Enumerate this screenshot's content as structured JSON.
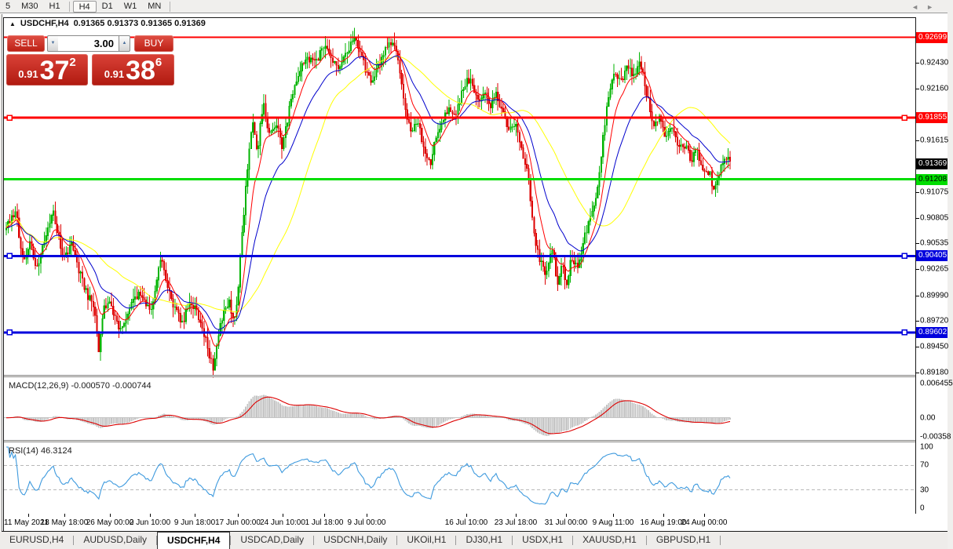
{
  "toolbar": {
    "timeframes": [
      {
        "label": "5",
        "active": false
      },
      {
        "label": "M30",
        "active": false
      },
      {
        "label": "H1",
        "active": false
      },
      {
        "sep": true
      },
      {
        "label": "H4",
        "active": true
      },
      {
        "label": "D1",
        "active": false
      },
      {
        "label": "W1",
        "active": false
      },
      {
        "label": "MN",
        "active": false
      },
      {
        "sep": true
      }
    ]
  },
  "chart_header": {
    "collapse_icon": "up-triangle",
    "symbol": "USDCHF,H4",
    "ohlc": "0.91365 0.91373 0.91365 0.91369"
  },
  "trade_panel": {
    "sell_label": "SELL",
    "buy_label": "BUY",
    "volume": "3.00",
    "sell_quote": {
      "small": "0.91",
      "big": "37",
      "sup": "2"
    },
    "buy_quote": {
      "small": "0.91",
      "big": "38",
      "sup": "6"
    }
  },
  "price_axis": {
    "plain_ticks": [
      {
        "value": 0.9243,
        "label": "0.92430"
      },
      {
        "value": 0.9216,
        "label": "0.92160"
      },
      {
        "value": 0.91615,
        "label": "0.91615"
      },
      {
        "value": 0.91075,
        "label": "0.91075"
      },
      {
        "value": 0.90805,
        "label": "0.90805"
      },
      {
        "value": 0.90535,
        "label": "0.90535"
      },
      {
        "value": 0.90265,
        "label": "0.90265"
      },
      {
        "value": 0.8999,
        "label": "0.89990"
      },
      {
        "value": 0.8972,
        "label": "0.89720"
      },
      {
        "value": 0.8945,
        "label": "0.89450"
      },
      {
        "value": 0.8918,
        "label": "0.89180"
      }
    ]
  },
  "macd_panel": {
    "label": "MACD(12,26,9)",
    "value_main": "-0.000570",
    "value_signal": "-0.000744",
    "axis": [
      {
        "value": 0.006455,
        "label": "0.006455"
      },
      {
        "value": 0,
        "label": "0.00"
      },
      {
        "value": -0.00358,
        "label": "-0.00358"
      }
    ],
    "histogram_color": "#c4c4c4",
    "signal_color": "#dd0000",
    "scale_top": 0.00749,
    "scale_bottom": -0.00417
  },
  "rsi_panel": {
    "label": "RSI(14)",
    "value": "46.3124",
    "axis": [
      {
        "value": 100,
        "label": "100"
      },
      {
        "value": 70,
        "label": "70"
      },
      {
        "value": 30,
        "label": "30"
      },
      {
        "value": 0,
        "label": "0"
      }
    ],
    "levels_dashed": [
      70,
      30
    ],
    "line_color": "#3e9ade",
    "scale_top": 106.4,
    "scale_bottom": -7.7
  },
  "time_axis": {
    "labels": [
      {
        "x": 36,
        "label": "11 May 2021",
        "align": "first"
      },
      {
        "x": 82,
        "label": "18 May 18:00"
      },
      {
        "x": 140,
        "label": "26 May 00:00"
      },
      {
        "x": 191,
        "label": "2 Jun 10:00"
      },
      {
        "x": 248,
        "label": "9 Jun 18:00"
      },
      {
        "x": 303,
        "label": "17 Jun 00:00"
      },
      {
        "x": 360,
        "label": "24 Jun 10:00"
      },
      {
        "x": 413,
        "label": "1 Jul 18:00"
      },
      {
        "x": 467,
        "label": "9 Jul 00:00"
      },
      {
        "x": 594,
        "label": "16 Jul 10:00"
      },
      {
        "x": 657,
        "label": "23 Jul 18:00"
      },
      {
        "x": 721,
        "label": "31 Jul 00:00"
      },
      {
        "x": 781,
        "label": "9 Aug 11:00"
      },
      {
        "x": 845,
        "label": "16 Aug 19:00"
      },
      {
        "x": 897,
        "label": "24 Aug 00:00"
      }
    ]
  },
  "tabs": {
    "items": [
      "EURUSD,H4",
      "AUDUSD,Daily",
      "USDCHF,H4",
      "USDCAD,Daily",
      "USDCNH,Daily",
      "UKOil,H1",
      "DJ30,H1",
      "USDX,H1",
      "XAUUSD,H1",
      "GBPUSD,H1"
    ],
    "active_index": 2,
    "scroll_left": "◄",
    "scroll_right": "►"
  },
  "chart_data": {
    "type": "candlestick",
    "symbol": "USDCHF",
    "timeframe": "H4",
    "title": "USDCHF,H4 0.91365 0.91373 0.91365 0.91369",
    "bull_color": "#00b300",
    "bear_color": "#dd0000",
    "y_range": {
      "top": 0.92901,
      "bottom": 0.89156
    },
    "x_start": 8,
    "x_end": 930,
    "bars": 400,
    "seed": 77,
    "noise": 0.00085,
    "wick": 0.0011,
    "current_price": {
      "value": 0.91369,
      "label": "0.91369",
      "badge_color": "#000000",
      "text_color": "#ffffff"
    },
    "price_levels": [
      {
        "value": 0.92699,
        "label": "0.92699",
        "color": "#ff0000",
        "width": 2,
        "badge_color": "#ff0000",
        "text_color": "#ffffff",
        "handles": false,
        "name": "resistance-line-0-92699"
      },
      {
        "value": 0.91855,
        "label": "0.91855",
        "color": "#ff0000",
        "width": 3,
        "badge_color": "#ff0000",
        "text_color": "#ffffff",
        "handles": true,
        "name": "resistance-line-0-91855"
      },
      {
        "value": 0.91208,
        "label": "0.91208",
        "color": "#00dd00",
        "width": 3,
        "badge_color": "#00dd00",
        "text_color": "#000000",
        "handles": false,
        "name": "support-line-0-91208"
      },
      {
        "value": 0.90405,
        "label": "0.90405",
        "color": "#0000dd",
        "width": 3,
        "badge_color": "#0000dd",
        "text_color": "#ffffff",
        "handles": true,
        "name": "support-line-0-90405"
      },
      {
        "value": 0.89602,
        "label": "0.89602",
        "color": "#0000dd",
        "width": 3,
        "badge_color": "#0000dd",
        "text_color": "#ffffff",
        "handles": true,
        "name": "support-line-0-89602"
      }
    ],
    "moving_averages": [
      {
        "type": "ema",
        "period": 10,
        "color": "#ff0000",
        "name": "ma-fast-red"
      },
      {
        "type": "ema",
        "period": 25,
        "color": "#0000cc",
        "name": "ma-medium-blue"
      },
      {
        "type": "sma",
        "period": 50,
        "color": "#ffff00",
        "name": "ma-slow-yellow"
      }
    ],
    "keyframes": [
      [
        8,
        0.9072
      ],
      [
        20,
        0.9088
      ],
      [
        30,
        0.903
      ],
      [
        38,
        0.9055
      ],
      [
        46,
        0.9024
      ],
      [
        58,
        0.906
      ],
      [
        68,
        0.9087
      ],
      [
        80,
        0.904
      ],
      [
        92,
        0.9052
      ],
      [
        102,
        0.9022
      ],
      [
        112,
        0.8998
      ],
      [
        120,
        0.899
      ],
      [
        126,
        0.8937
      ],
      [
        132,
        0.8986
      ],
      [
        140,
        0.8992
      ],
      [
        152,
        0.8962
      ],
      [
        165,
        0.8985
      ],
      [
        178,
        0.9002
      ],
      [
        192,
        0.898
      ],
      [
        205,
        0.9042
      ],
      [
        212,
        0.901
      ],
      [
        222,
        0.8988
      ],
      [
        232,
        0.897
      ],
      [
        242,
        0.8994
      ],
      [
        252,
        0.898
      ],
      [
        262,
        0.8952
      ],
      [
        272,
        0.8922
      ],
      [
        282,
        0.8975
      ],
      [
        292,
        0.8993
      ],
      [
        298,
        0.8972
      ],
      [
        303,
        0.8995
      ],
      [
        308,
        0.906
      ],
      [
        315,
        0.913
      ],
      [
        322,
        0.9182
      ],
      [
        328,
        0.915
      ],
      [
        335,
        0.9202
      ],
      [
        342,
        0.9168
      ],
      [
        352,
        0.9178
      ],
      [
        360,
        0.9155
      ],
      [
        368,
        0.9192
      ],
      [
        378,
        0.9225
      ],
      [
        390,
        0.925
      ],
      [
        400,
        0.9242
      ],
      [
        412,
        0.926
      ],
      [
        422,
        0.9248
      ],
      [
        432,
        0.924
      ],
      [
        442,
        0.9252
      ],
      [
        452,
        0.927
      ],
      [
        462,
        0.9245
      ],
      [
        472,
        0.9222
      ],
      [
        482,
        0.924
      ],
      [
        492,
        0.9258
      ],
      [
        500,
        0.9268
      ],
      [
        508,
        0.9242
      ],
      [
        516,
        0.9195
      ],
      [
        524,
        0.9168
      ],
      [
        532,
        0.9182
      ],
      [
        540,
        0.9155
      ],
      [
        548,
        0.9135
      ],
      [
        556,
        0.9168
      ],
      [
        564,
        0.9182
      ],
      [
        572,
        0.9195
      ],
      [
        580,
        0.9188
      ],
      [
        590,
        0.9218
      ],
      [
        600,
        0.9228
      ],
      [
        608,
        0.92
      ],
      [
        616,
        0.9212
      ],
      [
        624,
        0.9195
      ],
      [
        632,
        0.921
      ],
      [
        640,
        0.9195
      ],
      [
        648,
        0.917
      ],
      [
        656,
        0.9182
      ],
      [
        664,
        0.9155
      ],
      [
        672,
        0.913
      ],
      [
        680,
        0.9062
      ],
      [
        688,
        0.9035
      ],
      [
        696,
        0.9022
      ],
      [
        704,
        0.9048
      ],
      [
        710,
        0.9012
      ],
      [
        716,
        0.9035
      ],
      [
        722,
        0.9008
      ],
      [
        728,
        0.904
      ],
      [
        736,
        0.9028
      ],
      [
        744,
        0.9058
      ],
      [
        752,
        0.9082
      ],
      [
        760,
        0.9105
      ],
      [
        768,
        0.9162
      ],
      [
        776,
        0.9215
      ],
      [
        784,
        0.9232
      ],
      [
        792,
        0.9225
      ],
      [
        800,
        0.924
      ],
      [
        808,
        0.9228
      ],
      [
        816,
        0.9244
      ],
      [
        824,
        0.921
      ],
      [
        832,
        0.918
      ],
      [
        840,
        0.9188
      ],
      [
        848,
        0.9166
      ],
      [
        856,
        0.9178
      ],
      [
        864,
        0.9152
      ],
      [
        872,
        0.9158
      ],
      [
        880,
        0.9142
      ],
      [
        888,
        0.915
      ],
      [
        896,
        0.9132
      ],
      [
        904,
        0.9128
      ],
      [
        910,
        0.9108
      ],
      [
        918,
        0.9135
      ],
      [
        924,
        0.9148
      ],
      [
        930,
        0.9137
      ]
    ]
  }
}
